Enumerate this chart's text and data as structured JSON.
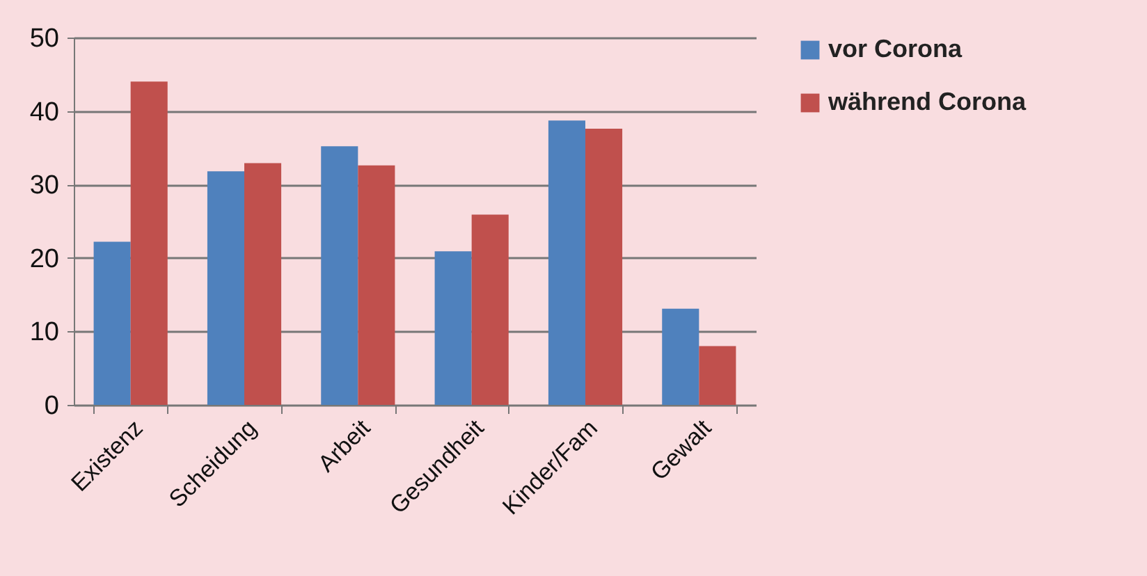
{
  "chart_data": {
    "type": "bar",
    "categories": [
      "Existenz",
      "Scheidung",
      "Arbeit",
      "Gesundheit",
      "Kinder/Fam",
      "Gewalt"
    ],
    "series": [
      {
        "name": "vor Corona",
        "color": "#4f81bd",
        "values": [
          22.2,
          31.8,
          35.2,
          20.9,
          38.7,
          13.1
        ]
      },
      {
        "name": "während Corona",
        "color": "#c0504d",
        "values": [
          44.0,
          32.9,
          32.6,
          25.9,
          37.6,
          8.0
        ]
      }
    ],
    "ylim": [
      0,
      50
    ],
    "yticks": [
      0,
      10,
      20,
      30,
      40,
      50
    ],
    "grid": "y",
    "legend": "right"
  }
}
